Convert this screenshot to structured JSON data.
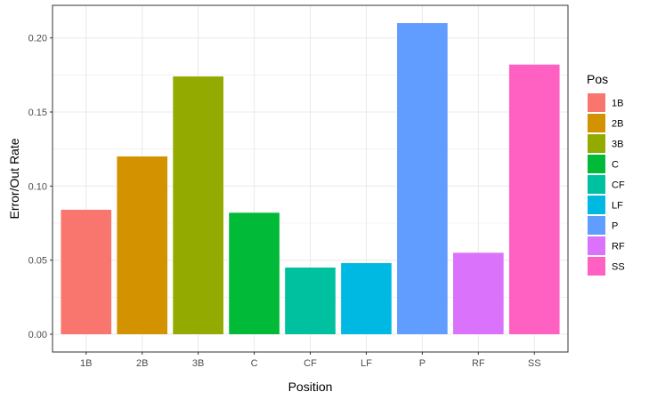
{
  "chart_data": {
    "type": "bar",
    "xlabel": "Position",
    "ylabel": "Error/Out Rate",
    "categories": [
      "1B",
      "2B",
      "3B",
      "C",
      "CF",
      "LF",
      "P",
      "RF",
      "SS"
    ],
    "values": [
      0.084,
      0.12,
      0.174,
      0.082,
      0.045,
      0.048,
      0.21,
      0.055,
      0.182
    ],
    "colors": [
      "#F8766D",
      "#D39200",
      "#93AA00",
      "#00BA38",
      "#00C19F",
      "#00B9E3",
      "#619CFF",
      "#DB72FB",
      "#FF61C3"
    ],
    "ylim": [
      -0.012,
      0.222
    ],
    "y_ticks": [
      0.0,
      0.05,
      0.1,
      0.15,
      0.2
    ],
    "y_tick_labels": [
      "0.00",
      "0.05",
      "0.10",
      "0.15",
      "0.20"
    ],
    "grid": true,
    "legend": {
      "title": "Pos",
      "position": "right",
      "items": [
        "1B",
        "2B",
        "3B",
        "C",
        "CF",
        "LF",
        "P",
        "RF",
        "SS"
      ]
    },
    "panel_border": "#333333",
    "grid_color": "#ebebeb"
  }
}
